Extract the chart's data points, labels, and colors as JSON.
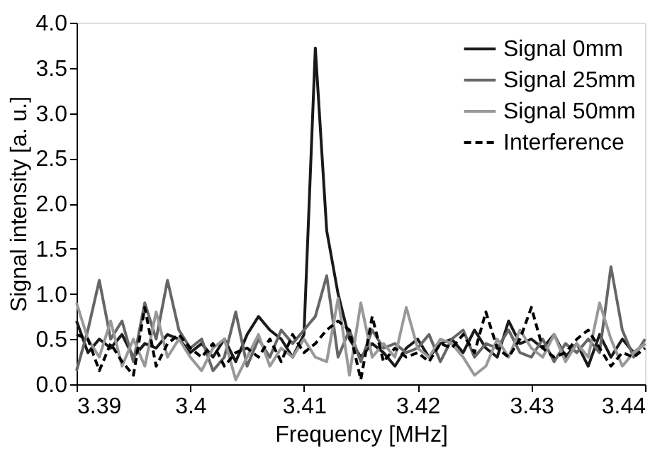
{
  "chart_data": {
    "type": "line",
    "xlabel": "Frequency [MHz]",
    "ylabel": "Signal intensity [a. u.]",
    "x": [
      3.39,
      3.391,
      3.392,
      3.393,
      3.394,
      3.395,
      3.396,
      3.397,
      3.398,
      3.399,
      3.4,
      3.401,
      3.402,
      3.403,
      3.404,
      3.405,
      3.406,
      3.407,
      3.408,
      3.409,
      3.41,
      3.411,
      3.412,
      3.413,
      3.414,
      3.415,
      3.416,
      3.417,
      3.418,
      3.419,
      3.42,
      3.421,
      3.422,
      3.423,
      3.424,
      3.425,
      3.426,
      3.427,
      3.428,
      3.429,
      3.43,
      3.431,
      3.432,
      3.433,
      3.434,
      3.435,
      3.436,
      3.437,
      3.438,
      3.439,
      3.44
    ],
    "series": [
      {
        "name": "Signal 0mm",
        "color": "#1a1a1a",
        "line_style": "solid",
        "values": [
          0.7,
          0.35,
          0.5,
          0.4,
          0.55,
          0.3,
          0.45,
          0.4,
          0.55,
          0.5,
          0.35,
          0.45,
          0.3,
          0.5,
          0.25,
          0.55,
          0.75,
          0.6,
          0.5,
          0.3,
          0.55,
          3.72,
          1.7,
          1.0,
          0.5,
          0.3,
          0.45,
          0.35,
          0.2,
          0.4,
          0.5,
          0.3,
          0.45,
          0.5,
          0.35,
          0.6,
          0.4,
          0.3,
          0.7,
          0.45,
          0.5,
          0.4,
          0.55,
          0.3,
          0.45,
          0.2,
          0.55,
          0.3,
          0.5,
          0.35,
          0.45
        ]
      },
      {
        "name": "Signal 25mm",
        "color": "#666666",
        "line_style": "solid",
        "values": [
          0.15,
          0.6,
          1.15,
          0.5,
          0.7,
          0.25,
          0.9,
          0.5,
          1.15,
          0.6,
          0.4,
          0.5,
          0.15,
          0.3,
          0.8,
          0.2,
          0.5,
          0.3,
          0.6,
          0.45,
          0.6,
          0.75,
          1.2,
          0.3,
          0.6,
          0.25,
          0.6,
          0.4,
          0.45,
          0.35,
          0.4,
          0.55,
          0.25,
          0.5,
          0.6,
          0.3,
          0.45,
          0.4,
          0.6,
          0.35,
          0.3,
          0.5,
          0.25,
          0.45,
          0.35,
          0.5,
          0.35,
          1.3,
          0.6,
          0.3,
          0.5
        ]
      },
      {
        "name": "Signal 50mm",
        "color": "#999999",
        "line_style": "solid",
        "values": [
          0.9,
          0.5,
          0.3,
          0.7,
          0.2,
          0.5,
          0.2,
          0.8,
          0.3,
          0.5,
          0.3,
          0.15,
          0.4,
          0.5,
          0.05,
          0.3,
          0.55,
          0.2,
          0.4,
          0.3,
          0.5,
          0.3,
          0.25,
          0.95,
          0.1,
          0.9,
          0.3,
          0.45,
          0.3,
          0.85,
          0.4,
          0.3,
          0.5,
          0.45,
          0.3,
          0.1,
          0.2,
          0.5,
          0.3,
          0.6,
          0.4,
          0.3,
          0.55,
          0.25,
          0.45,
          0.3,
          0.9,
          0.5,
          0.2,
          0.35,
          0.45
        ]
      },
      {
        "name": "Interference",
        "color": "#000000",
        "line_style": "dashed",
        "values": [
          0.55,
          0.5,
          0.15,
          0.45,
          0.25,
          0.1,
          0.85,
          0.2,
          0.45,
          0.55,
          0.4,
          0.3,
          0.45,
          0.2,
          0.35,
          0.4,
          0.3,
          0.5,
          0.25,
          0.55,
          0.35,
          0.45,
          0.6,
          0.7,
          0.6,
          0.05,
          0.75,
          0.25,
          0.4,
          0.3,
          0.35,
          0.25,
          0.45,
          0.4,
          0.55,
          0.35,
          0.8,
          0.4,
          0.3,
          0.5,
          0.85,
          0.4,
          0.3,
          0.35,
          0.5,
          0.6,
          0.4,
          0.2,
          0.35,
          0.3,
          0.4
        ]
      }
    ],
    "xlim": [
      3.39,
      3.44
    ],
    "xticks": [
      3.39,
      3.4,
      3.41,
      3.42,
      3.43,
      3.44
    ],
    "ylim": [
      0,
      4
    ],
    "yticks": [
      {
        "value": 0,
        "label": "0.0"
      },
      0.5,
      {
        "value": 1,
        "label": "1.0"
      },
      1.5,
      {
        "value": 2,
        "label": "2.0"
      },
      2.5,
      {
        "value": 3,
        "label": "3.0"
      },
      3.5,
      {
        "value": 4,
        "label": "4.0"
      }
    ],
    "grid": false,
    "legend": "top right"
  }
}
